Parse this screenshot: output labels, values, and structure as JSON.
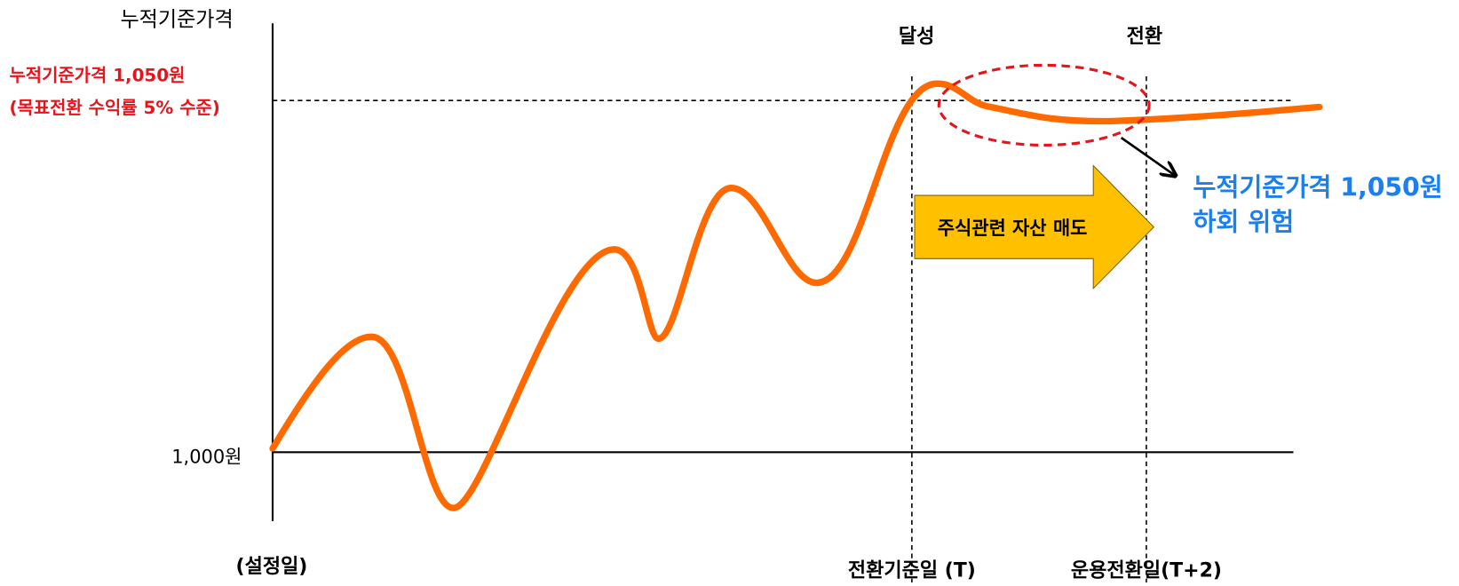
{
  "axis": {
    "y_title": "누적기준가격",
    "base_label": "1,000원",
    "start_label": "(설정일)"
  },
  "target": {
    "line1": "누적기준가격 1,050원",
    "line2": "(목표전환 수익률 5% 수준)"
  },
  "markers": {
    "achieve": "달성",
    "convert": "전환",
    "t_label": "전환기준일 (T)",
    "t2_label": "운용전환일(T+2)"
  },
  "action": "주식관련 자산 매도",
  "risk": {
    "line1": "누적기준가격 1,050원",
    "line2": "하회 위험"
  }
}
